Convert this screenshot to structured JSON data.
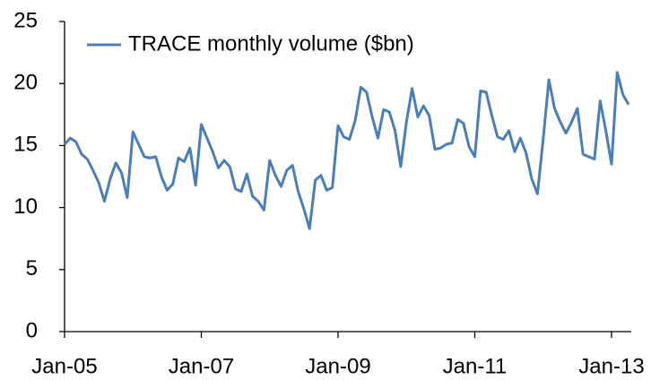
{
  "chart_data": {
    "type": "line",
    "categories": [
      "Jan-05",
      null,
      null,
      null,
      null,
      null,
      null,
      null,
      null,
      null,
      null,
      null,
      null,
      null,
      null,
      null,
      null,
      null,
      null,
      null,
      null,
      null,
      null,
      null,
      "Jan-07",
      null,
      null,
      null,
      null,
      null,
      null,
      null,
      null,
      null,
      null,
      null,
      null,
      null,
      null,
      null,
      null,
      null,
      null,
      null,
      null,
      null,
      null,
      null,
      "Jan-09",
      null,
      null,
      null,
      null,
      null,
      null,
      null,
      null,
      null,
      null,
      null,
      null,
      null,
      null,
      null,
      null,
      null,
      null,
      null,
      null,
      null,
      null,
      null,
      "Jan-11",
      null,
      null,
      null,
      null,
      null,
      null,
      null,
      null,
      null,
      null,
      null,
      null,
      null,
      null,
      null,
      null,
      null,
      null,
      null,
      null,
      null,
      null,
      null,
      "Jan-13",
      null,
      null,
      null
    ],
    "series": [
      {
        "name": "TRACE monthly volume ($bn)",
        "color": "#4a7ebb",
        "values": [
          15.1,
          15.6,
          15.3,
          14.3,
          13.9,
          13.0,
          12.0,
          10.5,
          12.3,
          13.6,
          12.8,
          10.8,
          16.1,
          15.1,
          14.1,
          14.0,
          14.1,
          12.5,
          11.4,
          11.9,
          14.0,
          13.7,
          14.8,
          11.8,
          16.7,
          15.6,
          14.5,
          13.2,
          13.8,
          13.3,
          11.5,
          11.3,
          12.7,
          10.9,
          10.5,
          9.8,
          13.8,
          12.6,
          11.7,
          13.0,
          13.4,
          11.3,
          9.9,
          8.3,
          12.2,
          12.6,
          11.4,
          11.6,
          16.6,
          15.7,
          15.5,
          17.0,
          19.7,
          19.3,
          17.3,
          15.6,
          17.9,
          17.7,
          16.2,
          13.3,
          16.9,
          19.6,
          17.3,
          18.2,
          17.4,
          14.7,
          14.8,
          15.1,
          15.2,
          17.1,
          16.8,
          14.9,
          14.1,
          19.4,
          19.3,
          17.4,
          15.7,
          15.5,
          16.2,
          14.5,
          15.6,
          14.4,
          12.3,
          11.1,
          15.5,
          20.3,
          18.0,
          16.9,
          16.0,
          16.9,
          18.0,
          14.3,
          14.1,
          13.9,
          18.6,
          16.2,
          13.5,
          20.9,
          19.1,
          18.3
        ]
      }
    ],
    "ylim": [
      0,
      25
    ],
    "yticks": [
      0,
      5,
      10,
      15,
      20,
      25
    ],
    "grid": false,
    "legend": "top-left"
  }
}
